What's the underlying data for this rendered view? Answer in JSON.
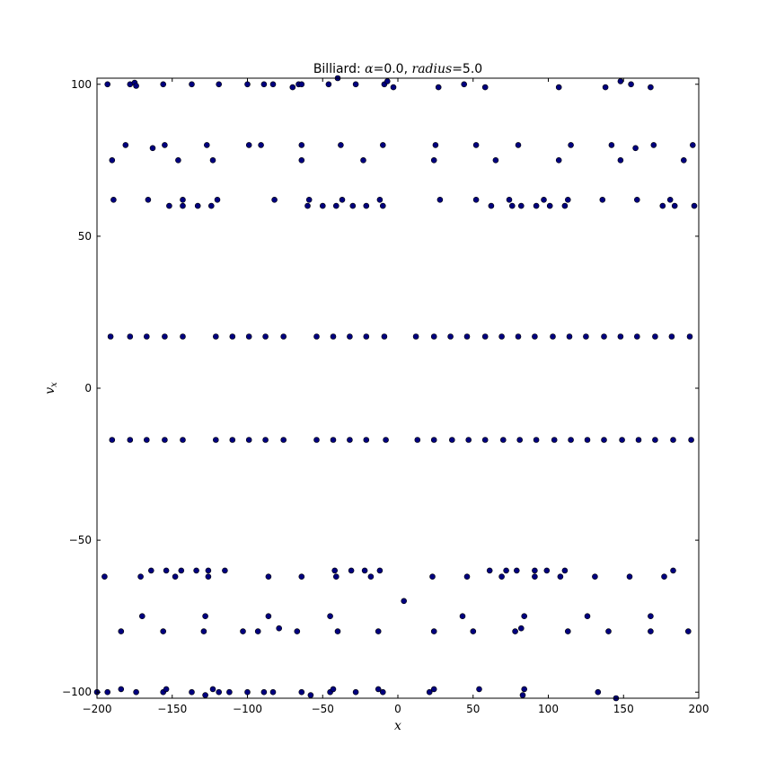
{
  "chart_data": {
    "type": "scatter",
    "title": {
      "prefix": "Billiard: ",
      "alpha_symbol": "α",
      "alpha_part": "=0.0, ",
      "radius_symbol": "radius",
      "radius_part": "=5.0"
    },
    "xlabel": "x",
    "ylabel": "v_x",
    "xlim": [
      -200,
      200
    ],
    "ylim": [
      -102,
      102
    ],
    "xticks": [
      -200,
      -150,
      -100,
      -50,
      0,
      50,
      100,
      150,
      200
    ],
    "yticks": [
      -100,
      -50,
      0,
      50,
      100
    ],
    "xtick_labels": [
      "−200",
      "−150",
      "−100",
      "−50",
      "0",
      "50",
      "100",
      "150",
      "200"
    ],
    "ytick_labels": [
      "−100",
      "−50",
      "0",
      "50",
      "100"
    ],
    "grid": false,
    "marker_color": "#00007f",
    "series": [
      {
        "points": [
          [
            -193,
            100
          ],
          [
            -178,
            100
          ],
          [
            -175,
            100.5
          ],
          [
            -174,
            99.5
          ],
          [
            -156,
            100
          ],
          [
            -137,
            100
          ],
          [
            -119,
            100
          ],
          [
            -100,
            100
          ],
          [
            -89,
            100
          ],
          [
            -83,
            100
          ],
          [
            -70,
            99
          ],
          [
            -66,
            100
          ],
          [
            -64,
            100
          ],
          [
            -46,
            100
          ],
          [
            -40,
            102
          ],
          [
            -28,
            100
          ],
          [
            -9,
            100
          ],
          [
            -7,
            101
          ],
          [
            -3,
            99
          ],
          [
            27,
            99
          ],
          [
            44,
            100
          ],
          [
            58,
            99
          ],
          [
            107,
            99
          ],
          [
            138,
            99
          ],
          [
            148,
            101
          ],
          [
            155,
            100
          ],
          [
            168,
            99
          ],
          [
            -190,
            75
          ],
          [
            -181,
            80
          ],
          [
            -163,
            79
          ],
          [
            -155,
            80
          ],
          [
            -146,
            75
          ],
          [
            -127,
            80
          ],
          [
            -123,
            75
          ],
          [
            -99,
            80
          ],
          [
            -91,
            80
          ],
          [
            -64,
            80
          ],
          [
            -64,
            75
          ],
          [
            -38,
            80
          ],
          [
            -23,
            75
          ],
          [
            -10,
            80
          ],
          [
            24,
            75
          ],
          [
            25,
            80
          ],
          [
            52,
            80
          ],
          [
            65,
            75
          ],
          [
            80,
            80
          ],
          [
            107,
            75
          ],
          [
            115,
            80
          ],
          [
            142,
            80
          ],
          [
            148,
            75
          ],
          [
            158,
            79
          ],
          [
            170,
            80
          ],
          [
            190,
            75
          ],
          [
            196,
            80
          ],
          [
            -189,
            62
          ],
          [
            -166,
            62
          ],
          [
            -152,
            60
          ],
          [
            -143,
            60
          ],
          [
            -143,
            62
          ],
          [
            -133,
            60
          ],
          [
            -124,
            60
          ],
          [
            -120,
            62
          ],
          [
            -82,
            62
          ],
          [
            -59,
            62
          ],
          [
            -60,
            60
          ],
          [
            -50,
            60
          ],
          [
            -41,
            60
          ],
          [
            -37,
            62
          ],
          [
            -30,
            60
          ],
          [
            -21,
            60
          ],
          [
            -12,
            62
          ],
          [
            -10,
            60
          ],
          [
            28,
            62
          ],
          [
            52,
            62
          ],
          [
            62,
            60
          ],
          [
            74,
            62
          ],
          [
            76,
            60
          ],
          [
            82,
            60
          ],
          [
            92,
            60
          ],
          [
            97,
            62
          ],
          [
            101,
            60
          ],
          [
            111,
            60
          ],
          [
            113,
            62
          ],
          [
            136,
            62
          ],
          [
            159,
            62
          ],
          [
            176,
            60
          ],
          [
            181,
            62
          ],
          [
            184,
            60
          ],
          [
            197,
            60
          ],
          [
            -191,
            17
          ],
          [
            -178,
            17
          ],
          [
            -167,
            17
          ],
          [
            -155,
            17
          ],
          [
            -143,
            17
          ],
          [
            -121,
            17
          ],
          [
            -110,
            17
          ],
          [
            -99,
            17
          ],
          [
            -88,
            17
          ],
          [
            -76,
            17
          ],
          [
            -54,
            17
          ],
          [
            -43,
            17
          ],
          [
            -32,
            17
          ],
          [
            -21,
            17
          ],
          [
            -9,
            17
          ],
          [
            12,
            17
          ],
          [
            24,
            17
          ],
          [
            35,
            17
          ],
          [
            46,
            17
          ],
          [
            58,
            17
          ],
          [
            69,
            17
          ],
          [
            80,
            17
          ],
          [
            91,
            17
          ],
          [
            103,
            17
          ],
          [
            114,
            17
          ],
          [
            125,
            17
          ],
          [
            137,
            17
          ],
          [
            148,
            17
          ],
          [
            159,
            17
          ],
          [
            171,
            17
          ],
          [
            182,
            17
          ],
          [
            194,
            17
          ],
          [
            -190,
            -17
          ],
          [
            -178,
            -17
          ],
          [
            -167,
            -17
          ],
          [
            -155,
            -17
          ],
          [
            -143,
            -17
          ],
          [
            -121,
            -17
          ],
          [
            -110,
            -17
          ],
          [
            -99,
            -17
          ],
          [
            -88,
            -17
          ],
          [
            -76,
            -17
          ],
          [
            -54,
            -17
          ],
          [
            -43,
            -17
          ],
          [
            -32,
            -17
          ],
          [
            -21,
            -17
          ],
          [
            -8,
            -17
          ],
          [
            13,
            -17
          ],
          [
            24,
            -17
          ],
          [
            36,
            -17
          ],
          [
            47,
            -17
          ],
          [
            58,
            -17
          ],
          [
            70,
            -17
          ],
          [
            81,
            -17
          ],
          [
            92,
            -17
          ],
          [
            104,
            -17
          ],
          [
            115,
            -17
          ],
          [
            126,
            -17
          ],
          [
            137,
            -17
          ],
          [
            149,
            -17
          ],
          [
            160,
            -17
          ],
          [
            171,
            -17
          ],
          [
            183,
            -17
          ],
          [
            195,
            -17
          ],
          [
            -195,
            -62
          ],
          [
            -171,
            -62
          ],
          [
            -164,
            -60
          ],
          [
            -154,
            -60
          ],
          [
            -148,
            -62
          ],
          [
            -144,
            -60
          ],
          [
            -134,
            -60
          ],
          [
            -126,
            -60
          ],
          [
            -126,
            -62
          ],
          [
            -115,
            -60
          ],
          [
            -86,
            -62
          ],
          [
            -64,
            -62
          ],
          [
            -42,
            -60
          ],
          [
            -41,
            -62
          ],
          [
            -31,
            -60
          ],
          [
            -22,
            -60
          ],
          [
            -18,
            -62
          ],
          [
            -12,
            -60
          ],
          [
            4,
            -70
          ],
          [
            23,
            -62
          ],
          [
            46,
            -62
          ],
          [
            61,
            -60
          ],
          [
            69,
            -62
          ],
          [
            72,
            -60
          ],
          [
            79,
            -60
          ],
          [
            91,
            -60
          ],
          [
            91,
            -62
          ],
          [
            99,
            -60
          ],
          [
            108,
            -62
          ],
          [
            111,
            -60
          ],
          [
            131,
            -62
          ],
          [
            154,
            -62
          ],
          [
            177,
            -62
          ],
          [
            183,
            -60
          ],
          [
            -184,
            -80
          ],
          [
            -170,
            -75
          ],
          [
            -156,
            -80
          ],
          [
            -129,
            -80
          ],
          [
            -128,
            -75
          ],
          [
            -103,
            -80
          ],
          [
            -93,
            -80
          ],
          [
            -86,
            -75
          ],
          [
            -79,
            -79
          ],
          [
            -67,
            -80
          ],
          [
            -45,
            -75
          ],
          [
            -40,
            -80
          ],
          [
            -13,
            -80
          ],
          [
            24,
            -80
          ],
          [
            43,
            -75
          ],
          [
            50,
            -80
          ],
          [
            78,
            -80
          ],
          [
            82,
            -79
          ],
          [
            84,
            -75
          ],
          [
            113,
            -80
          ],
          [
            126,
            -75
          ],
          [
            140,
            -80
          ],
          [
            168,
            -80
          ],
          [
            168,
            -75
          ],
          [
            193,
            -80
          ],
          [
            -200,
            -100
          ],
          [
            -193,
            -100
          ],
          [
            -184,
            -99
          ],
          [
            -174,
            -100
          ],
          [
            -156,
            -100
          ],
          [
            -154,
            -99
          ],
          [
            -137,
            -100
          ],
          [
            -128,
            -101
          ],
          [
            -123,
            -99
          ],
          [
            -119,
            -100
          ],
          [
            -112,
            -100
          ],
          [
            -100,
            -100
          ],
          [
            -89,
            -100
          ],
          [
            -83,
            -100
          ],
          [
            -64,
            -100
          ],
          [
            -58,
            -101
          ],
          [
            -45,
            -100
          ],
          [
            -43,
            -99
          ],
          [
            -28,
            -100
          ],
          [
            -13,
            -99
          ],
          [
            -10,
            -100
          ],
          [
            21,
            -100
          ],
          [
            24,
            -99
          ],
          [
            54,
            -99
          ],
          [
            83,
            -101
          ],
          [
            84,
            -99
          ],
          [
            133,
            -100
          ],
          [
            145,
            -102
          ]
        ]
      }
    ]
  }
}
